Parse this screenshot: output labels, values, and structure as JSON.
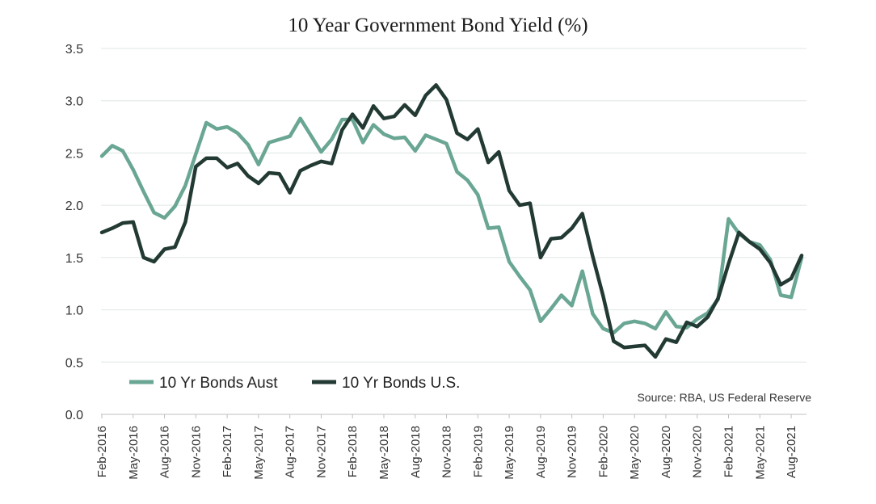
{
  "chart_data": {
    "type": "line",
    "title": "10 Year Government Bond Yield (%)",
    "xlabel": "",
    "ylabel": "",
    "ylim": [
      0,
      3.5
    ],
    "yticks": [
      "0.0",
      "0.5",
      "1.0",
      "1.5",
      "2.0",
      "2.5",
      "3.0",
      "3.5"
    ],
    "x": [
      "Feb-2016",
      "Mar-2016",
      "Apr-2016",
      "May-2016",
      "Jun-2016",
      "Jul-2016",
      "Aug-2016",
      "Sep-2016",
      "Oct-2016",
      "Nov-2016",
      "Dec-2016",
      "Jan-2017",
      "Feb-2017",
      "Mar-2017",
      "Apr-2017",
      "May-2017",
      "Jun-2017",
      "Jul-2017",
      "Aug-2017",
      "Sep-2017",
      "Oct-2017",
      "Nov-2017",
      "Dec-2017",
      "Jan-2018",
      "Feb-2018",
      "Mar-2018",
      "Apr-2018",
      "May-2018",
      "Jun-2018",
      "Jul-2018",
      "Aug-2018",
      "Sep-2018",
      "Oct-2018",
      "Nov-2018",
      "Dec-2018",
      "Jan-2019",
      "Feb-2019",
      "Mar-2019",
      "Apr-2019",
      "May-2019",
      "Jun-2019",
      "Jul-2019",
      "Aug-2019",
      "Sep-2019",
      "Oct-2019",
      "Nov-2019",
      "Dec-2019",
      "Jan-2020",
      "Feb-2020",
      "Mar-2020",
      "Apr-2020",
      "May-2020",
      "Jun-2020",
      "Jul-2020",
      "Aug-2020",
      "Sep-2020",
      "Oct-2020",
      "Nov-2020",
      "Dec-2020",
      "Jan-2021",
      "Feb-2021",
      "Mar-2021",
      "Apr-2021",
      "May-2021",
      "Jun-2021",
      "Jul-2021",
      "Aug-2021",
      "Sep-2021"
    ],
    "xtick_labels": [
      "Feb-2016",
      "May-2016",
      "Aug-2016",
      "Nov-2016",
      "Feb-2017",
      "May-2017",
      "Aug-2017",
      "Nov-2017",
      "Feb-2018",
      "May-2018",
      "Aug-2018",
      "Nov-2018",
      "Feb-2019",
      "May-2019",
      "Aug-2019",
      "Nov-2019",
      "Feb-2020",
      "May-2020",
      "Aug-2020",
      "Nov-2020",
      "Feb-2021",
      "May-2021",
      "Aug-2021"
    ],
    "series": [
      {
        "name": "10 Yr Bonds Aust",
        "color": "#6aa694",
        "values": [
          2.47,
          2.57,
          2.52,
          2.34,
          2.13,
          1.93,
          1.88,
          1.99,
          2.19,
          2.49,
          2.79,
          2.73,
          2.75,
          2.69,
          2.58,
          2.39,
          2.6,
          2.63,
          2.66,
          2.83,
          2.67,
          2.51,
          2.63,
          2.82,
          2.82,
          2.6,
          2.77,
          2.68,
          2.64,
          2.65,
          2.52,
          2.67,
          2.63,
          2.59,
          2.32,
          2.24,
          2.1,
          1.78,
          1.79,
          1.46,
          1.32,
          1.19,
          0.89,
          1.01,
          1.14,
          1.04,
          1.37,
          0.96,
          0.82,
          0.78,
          0.87,
          0.89,
          0.87,
          0.82,
          0.98,
          0.84,
          0.83,
          0.91,
          0.97,
          1.1,
          1.87,
          1.73,
          1.65,
          1.62,
          1.48,
          1.14,
          1.12,
          1.5
        ]
      },
      {
        "name": "10 Yr Bonds U.S.",
        "color": "#223a33",
        "values": [
          1.74,
          1.78,
          1.83,
          1.84,
          1.5,
          1.46,
          1.58,
          1.6,
          1.84,
          2.37,
          2.45,
          2.45,
          2.36,
          2.4,
          2.28,
          2.21,
          2.31,
          2.3,
          2.12,
          2.33,
          2.38,
          2.42,
          2.4,
          2.72,
          2.87,
          2.74,
          2.95,
          2.83,
          2.85,
          2.96,
          2.86,
          3.05,
          3.15,
          3.01,
          2.69,
          2.63,
          2.73,
          2.41,
          2.51,
          2.14,
          2.0,
          2.02,
          1.5,
          1.68,
          1.69,
          1.78,
          1.92,
          1.51,
          1.13,
          0.7,
          0.64,
          0.65,
          0.66,
          0.55,
          0.72,
          0.69,
          0.88,
          0.84,
          0.93,
          1.11,
          1.44,
          1.74,
          1.65,
          1.58,
          1.45,
          1.24,
          1.3,
          1.52
        ]
      }
    ],
    "legend": "bottom-left",
    "grid": true,
    "source": "Source: RBA, US Federal Reserve"
  }
}
